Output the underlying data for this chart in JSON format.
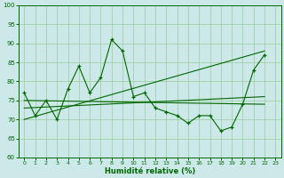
{
  "xlabel": "Humidité relative (%)",
  "xlim": [
    -0.5,
    23.5
  ],
  "ylim": [
    60,
    100
  ],
  "yticks": [
    60,
    65,
    70,
    75,
    80,
    85,
    90,
    95,
    100
  ],
  "xticks": [
    0,
    1,
    2,
    3,
    4,
    5,
    6,
    7,
    8,
    9,
    10,
    11,
    12,
    13,
    14,
    15,
    16,
    17,
    18,
    19,
    20,
    21,
    22,
    23
  ],
  "background_color": "#cce8e8",
  "grid_color": "#99cc99",
  "line_color": "#006600",
  "main_line": {
    "x": [
      0,
      1,
      2,
      3,
      4,
      5,
      6,
      7,
      8,
      9,
      10,
      11,
      12,
      13,
      14,
      15,
      16,
      17,
      18,
      19,
      20,
      21,
      22
    ],
    "y": [
      77,
      71,
      75,
      70,
      78,
      84,
      77,
      81,
      91,
      88,
      76,
      77,
      73,
      72,
      71,
      69,
      71,
      71,
      67,
      68,
      74,
      83,
      87
    ]
  },
  "trend_lines": [
    {
      "x": [
        0,
        22
      ],
      "y": [
        75,
        74
      ]
    },
    {
      "x": [
        0,
        22
      ],
      "y": [
        73,
        76
      ]
    },
    {
      "x": [
        0,
        22
      ],
      "y": [
        70,
        88
      ]
    }
  ]
}
